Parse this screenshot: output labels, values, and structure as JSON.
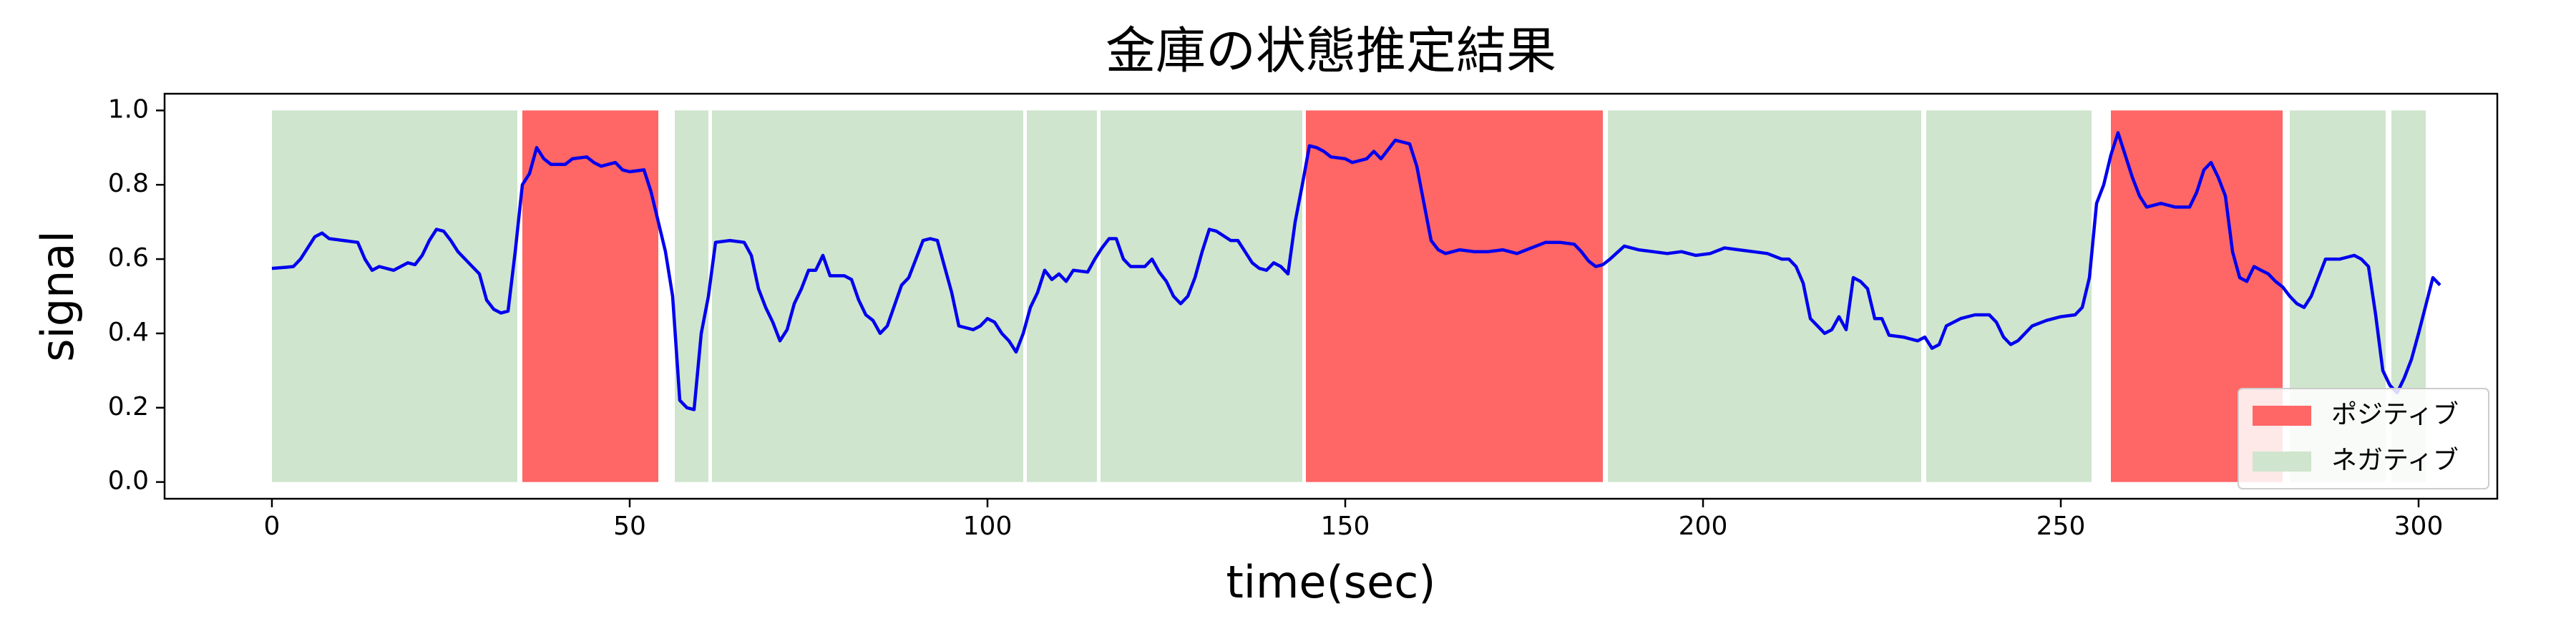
{
  "chart_data": {
    "type": "line",
    "title": "金庫の状態推定結果",
    "x_label": "time(sec)",
    "y_label": "signal",
    "xlim": [
      -15,
      311
    ],
    "ylim": [
      -0.045,
      1.045
    ],
    "xticks": [
      0,
      50,
      100,
      150,
      200,
      250,
      300
    ],
    "yticks": [
      {
        "value": 0,
        "label": "0.0"
      },
      0.2,
      0.4,
      0.6,
      0.8,
      {
        "value": 1,
        "label": "1.0"
      }
    ],
    "legend": "lower right",
    "spans": [
      {
        "name": "ポジティブ",
        "color": "#ff6666",
        "ranges": [
          [
            35,
            54
          ],
          [
            144.5,
            186
          ],
          [
            257,
            281
          ]
        ]
      },
      {
        "name": "ネガティブ",
        "color": "#cfe5cd",
        "ranges": [
          [
            0,
            34.3
          ],
          [
            56.3,
            61
          ],
          [
            61.5,
            105
          ],
          [
            105.5,
            115.3
          ],
          [
            115.8,
            144
          ],
          [
            186.7,
            230.5
          ],
          [
            231.2,
            254.3
          ],
          [
            282,
            295.4
          ],
          [
            296.2,
            301
          ]
        ]
      }
    ],
    "line": {
      "color": "#0000ee",
      "x": [
        0,
        2,
        3,
        4,
        5,
        6,
        7,
        8,
        10,
        12,
        13,
        14,
        15,
        17,
        19,
        20,
        21,
        22,
        23,
        24,
        25,
        26,
        28,
        29,
        30,
        31,
        32,
        33,
        34,
        35,
        36,
        37,
        38,
        39,
        41,
        42,
        44,
        45,
        46,
        48,
        49,
        50,
        52,
        53,
        54,
        55,
        56,
        57,
        58,
        59,
        60,
        61,
        62,
        64,
        66,
        67,
        68,
        69,
        70,
        71,
        72,
        73,
        74,
        75,
        76,
        77,
        78,
        80,
        81,
        82,
        83,
        84,
        85,
        86,
        88,
        89,
        90,
        91,
        92,
        93,
        94,
        95,
        96,
        98,
        99,
        100,
        101,
        102,
        103,
        104,
        105,
        106,
        107,
        108,
        109,
        110,
        111,
        112,
        114,
        115,
        116,
        117,
        118,
        119,
        120,
        122,
        123,
        124,
        125,
        126,
        127,
        128,
        129,
        130,
        131,
        132,
        134,
        135,
        136,
        137,
        138,
        139,
        140,
        141,
        142,
        143,
        144,
        145,
        146,
        147,
        148,
        150,
        151,
        153,
        154,
        155,
        156,
        157,
        158,
        159,
        160,
        161,
        162,
        163,
        164,
        166,
        168,
        170,
        172,
        174,
        176,
        178,
        180,
        182,
        183,
        184,
        185,
        186,
        187,
        189,
        191,
        193,
        195,
        197,
        199,
        201,
        203,
        205,
        207,
        209,
        211,
        212,
        213,
        214,
        215,
        216,
        217,
        218,
        219,
        220,
        221,
        222,
        223,
        224,
        225,
        226,
        228,
        230,
        231,
        232,
        233,
        234,
        236,
        238,
        240,
        241,
        242,
        243,
        244,
        246,
        248,
        250,
        252,
        253,
        254,
        255,
        256,
        257,
        258,
        259,
        260,
        261,
        262,
        264,
        266,
        268,
        269,
        270,
        271,
        272,
        273,
        274,
        275,
        276,
        277,
        278,
        279,
        280,
        281,
        282,
        283,
        284,
        285,
        286,
        287,
        289,
        290,
        291,
        292,
        293,
        294,
        295,
        296,
        297,
        298,
        299,
        300,
        302,
        303
      ],
      "values": [
        0.575,
        0.578,
        0.58,
        0.6,
        0.63,
        0.66,
        0.67,
        0.655,
        0.65,
        0.645,
        0.6,
        0.57,
        0.58,
        0.57,
        0.59,
        0.585,
        0.61,
        0.65,
        0.68,
        0.675,
        0.65,
        0.62,
        0.58,
        0.56,
        0.49,
        0.465,
        0.455,
        0.46,
        0.62,
        0.8,
        0.83,
        0.9,
        0.87,
        0.855,
        0.855,
        0.87,
        0.875,
        0.86,
        0.85,
        0.86,
        0.84,
        0.835,
        0.84,
        0.78,
        0.7,
        0.62,
        0.5,
        0.22,
        0.2,
        0.195,
        0.4,
        0.5,
        0.645,
        0.65,
        0.645,
        0.61,
        0.52,
        0.47,
        0.43,
        0.38,
        0.41,
        0.48,
        0.52,
        0.57,
        0.57,
        0.61,
        0.555,
        0.555,
        0.545,
        0.49,
        0.45,
        0.435,
        0.4,
        0.42,
        0.53,
        0.55,
        0.6,
        0.65,
        0.655,
        0.65,
        0.58,
        0.51,
        0.42,
        0.41,
        0.42,
        0.44,
        0.43,
        0.4,
        0.38,
        0.35,
        0.4,
        0.47,
        0.51,
        0.57,
        0.545,
        0.56,
        0.54,
        0.57,
        0.565,
        0.6,
        0.63,
        0.655,
        0.655,
        0.6,
        0.58,
        0.58,
        0.6,
        0.565,
        0.54,
        0.5,
        0.48,
        0.5,
        0.55,
        0.62,
        0.68,
        0.675,
        0.65,
        0.65,
        0.62,
        0.59,
        0.575,
        0.57,
        0.59,
        0.58,
        0.56,
        0.7,
        0.8,
        0.905,
        0.9,
        0.89,
        0.875,
        0.87,
        0.86,
        0.87,
        0.89,
        0.87,
        0.895,
        0.92,
        0.915,
        0.91,
        0.85,
        0.75,
        0.65,
        0.625,
        0.615,
        0.625,
        0.62,
        0.62,
        0.625,
        0.615,
        0.63,
        0.645,
        0.645,
        0.64,
        0.62,
        0.595,
        0.58,
        0.585,
        0.6,
        0.635,
        0.625,
        0.62,
        0.615,
        0.62,
        0.61,
        0.615,
        0.63,
        0.625,
        0.62,
        0.615,
        0.6,
        0.6,
        0.58,
        0.535,
        0.44,
        0.42,
        0.4,
        0.41,
        0.445,
        0.41,
        0.55,
        0.54,
        0.52,
        0.44,
        0.44,
        0.395,
        0.39,
        0.38,
        0.39,
        0.36,
        0.37,
        0.42,
        0.44,
        0.45,
        0.45,
        0.43,
        0.39,
        0.37,
        0.38,
        0.42,
        0.435,
        0.445,
        0.45,
        0.47,
        0.55,
        0.75,
        0.8,
        0.88,
        0.94,
        0.88,
        0.82,
        0.77,
        0.74,
        0.75,
        0.74,
        0.74,
        0.78,
        0.84,
        0.86,
        0.82,
        0.77,
        0.62,
        0.55,
        0.54,
        0.58,
        0.57,
        0.56,
        0.54,
        0.525,
        0.5,
        0.48,
        0.47,
        0.5,
        0.55,
        0.6,
        0.6,
        0.605,
        0.61,
        0.6,
        0.58,
        0.45,
        0.3,
        0.26,
        0.24,
        0.28,
        0.33,
        0.4,
        0.55,
        0.53
      ]
    }
  }
}
